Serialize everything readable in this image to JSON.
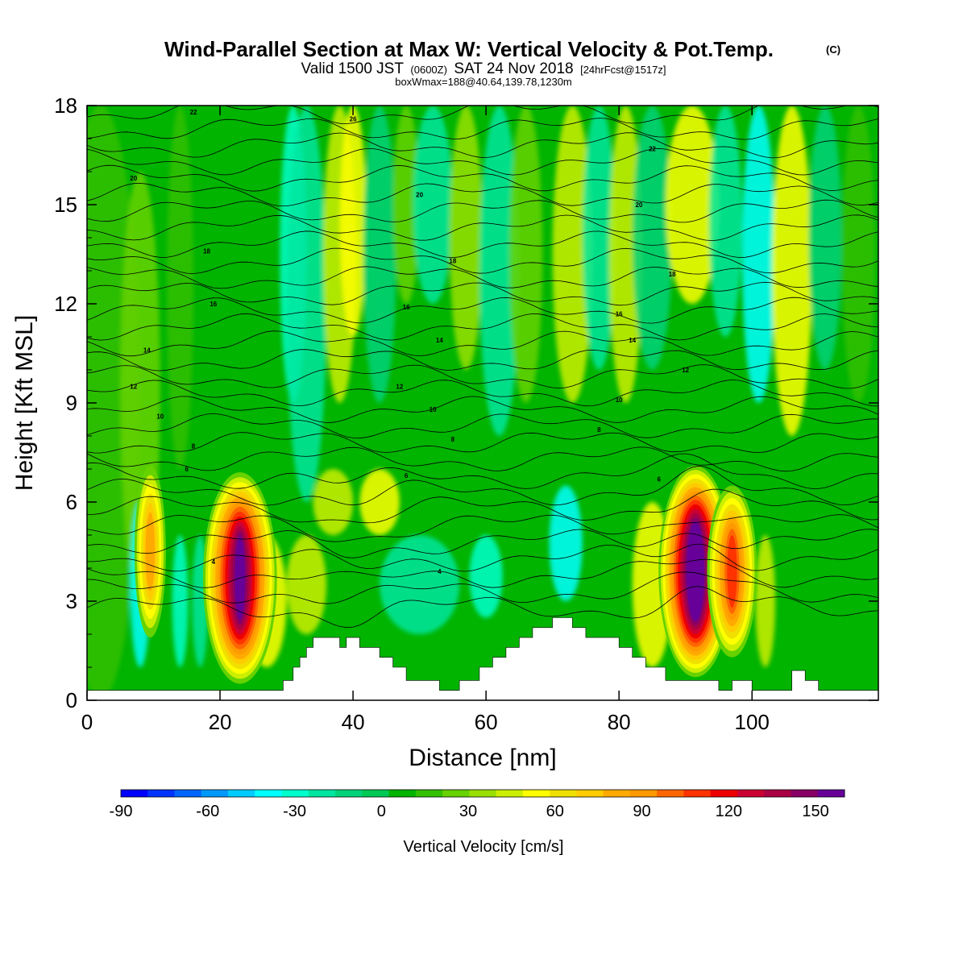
{
  "chart_data": {
    "type": "heatmap",
    "title": "Wind-Parallel Section at Max W: Vertical Velocity & Pot.Temp.",
    "title_mark": "(C)",
    "subtitle": {
      "valid_prefix": "Valid 1500 JST",
      "utc": "(0600Z)",
      "date": "SAT 24 Nov 2018",
      "forecast": "[24hrFcst@1517z]"
    },
    "annotation": "boxWmax=188@40.64,139.78,1230m",
    "xlabel": "Distance [nm]",
    "ylabel": "Height [Kft MSL]",
    "xlim": [
      0,
      119
    ],
    "ylim": [
      0,
      18
    ],
    "x_ticks": [
      "0",
      "20",
      "40",
      "60",
      "80",
      "100"
    ],
    "y_ticks": [
      "0",
      "3",
      "6",
      "9",
      "12",
      "15",
      "18"
    ],
    "colorbar": {
      "label": "Vertical Velocity [cm/s]",
      "tick_labels": [
        "-90",
        "-60",
        "-30",
        "0",
        "30",
        "60",
        "90",
        "120",
        "150"
      ],
      "range": [
        -90,
        160
      ],
      "colors": [
        "#0000ff",
        "#0033ff",
        "#0066ff",
        "#0099ff",
        "#00ccff",
        "#00ffff",
        "#00ffcc",
        "#00e6a0",
        "#00d27a",
        "#00c855",
        "#00b400",
        "#33c000",
        "#66d200",
        "#99e000",
        "#ccee00",
        "#ffff00",
        "#f0e000",
        "#ffcc00",
        "#ffaa00",
        "#ff9900",
        "#ff6600",
        "#ff3300",
        "#ee0000",
        "#cc0033",
        "#aa0044",
        "#880066",
        "#660099"
      ]
    },
    "updraft_cores": [
      {
        "x": 9.5,
        "z": 4.5,
        "w": 80
      },
      {
        "x": 23,
        "z": 3.7,
        "w": 160
      },
      {
        "x": 91.5,
        "z": 3.9,
        "w": 188
      },
      {
        "x": 97,
        "z": 3.9,
        "w": 110
      }
    ],
    "terrain": [
      [
        0,
        0.3
      ],
      [
        6,
        0.3
      ],
      [
        10,
        0.3
      ],
      [
        20,
        0.3
      ],
      [
        29.5,
        0.3
      ],
      [
        29.5,
        0.6
      ],
      [
        31,
        0.6
      ],
      [
        31,
        1.0
      ],
      [
        32,
        1.0
      ],
      [
        32,
        1.3
      ],
      [
        33,
        1.3
      ],
      [
        33,
        1.6
      ],
      [
        34,
        1.6
      ],
      [
        34,
        1.9
      ],
      [
        38,
        1.9
      ],
      [
        38,
        1.6
      ],
      [
        39,
        1.6
      ],
      [
        39,
        1.9
      ],
      [
        41,
        1.9
      ],
      [
        41,
        1.6
      ],
      [
        44,
        1.6
      ],
      [
        44,
        1.3
      ],
      [
        46,
        1.3
      ],
      [
        46,
        1.0
      ],
      [
        48,
        1.0
      ],
      [
        48,
        0.6
      ],
      [
        53,
        0.6
      ],
      [
        53,
        0.3
      ],
      [
        56,
        0.3
      ],
      [
        56,
        0.6
      ],
      [
        59,
        0.6
      ],
      [
        59,
        1.0
      ],
      [
        61,
        1.0
      ],
      [
        61,
        1.3
      ],
      [
        63,
        1.3
      ],
      [
        63,
        1.6
      ],
      [
        65,
        1.6
      ],
      [
        65,
        1.9
      ],
      [
        67,
        1.9
      ],
      [
        67,
        2.2
      ],
      [
        70,
        2.2
      ],
      [
        70,
        2.5
      ],
      [
        73,
        2.5
      ],
      [
        73,
        2.2
      ],
      [
        75,
        2.2
      ],
      [
        75,
        1.9
      ],
      [
        80,
        1.9
      ],
      [
        80,
        1.6
      ],
      [
        82,
        1.6
      ],
      [
        82,
        1.3
      ],
      [
        84,
        1.3
      ],
      [
        84,
        1.0
      ],
      [
        87,
        1.0
      ],
      [
        87,
        0.6
      ],
      [
        95,
        0.6
      ],
      [
        95,
        0.3
      ],
      [
        97,
        0.3
      ],
      [
        97,
        0.6
      ],
      [
        100,
        0.6
      ],
      [
        100,
        0.3
      ],
      [
        106,
        0.3
      ],
      [
        106,
        0.9
      ],
      [
        108,
        0.9
      ],
      [
        108,
        0.6
      ],
      [
        110,
        0.6
      ],
      [
        110,
        0.3
      ],
      [
        119,
        0.3
      ]
    ],
    "isentrope_labels": [
      {
        "x": 16,
        "z": 17.8,
        "text": "22"
      },
      {
        "x": 40,
        "z": 17.6,
        "text": "26"
      },
      {
        "x": 85,
        "z": 16.7,
        "text": "22"
      },
      {
        "x": 7,
        "z": 15.8,
        "text": "20"
      },
      {
        "x": 50,
        "z": 15.3,
        "text": "20"
      },
      {
        "x": 83,
        "z": 15.0,
        "text": "20"
      },
      {
        "x": 18,
        "z": 13.6,
        "text": "18"
      },
      {
        "x": 55,
        "z": 13.3,
        "text": "18"
      },
      {
        "x": 88,
        "z": 12.9,
        "text": "18"
      },
      {
        "x": 19,
        "z": 12.0,
        "text": "16"
      },
      {
        "x": 48,
        "z": 11.9,
        "text": "16"
      },
      {
        "x": 80,
        "z": 11.7,
        "text": "16"
      },
      {
        "x": 9,
        "z": 10.6,
        "text": "14"
      },
      {
        "x": 53,
        "z": 10.9,
        "text": "14"
      },
      {
        "x": 82,
        "z": 10.9,
        "text": "14"
      },
      {
        "x": 7,
        "z": 9.5,
        "text": "12"
      },
      {
        "x": 47,
        "z": 9.5,
        "text": "12"
      },
      {
        "x": 90,
        "z": 10.0,
        "text": "12"
      },
      {
        "x": 11,
        "z": 8.6,
        "text": "10"
      },
      {
        "x": 52,
        "z": 8.8,
        "text": "10"
      },
      {
        "x": 80,
        "z": 9.1,
        "text": "10"
      },
      {
        "x": 16,
        "z": 7.7,
        "text": "8"
      },
      {
        "x": 55,
        "z": 7.9,
        "text": "8"
      },
      {
        "x": 77,
        "z": 8.2,
        "text": "8"
      },
      {
        "x": 15,
        "z": 7.0,
        "text": "6"
      },
      {
        "x": 48,
        "z": 6.8,
        "text": "6"
      },
      {
        "x": 86,
        "z": 6.7,
        "text": "6"
      },
      {
        "x": 19,
        "z": 4.2,
        "text": "4"
      },
      {
        "x": 53,
        "z": 3.9,
        "text": "4"
      }
    ]
  }
}
